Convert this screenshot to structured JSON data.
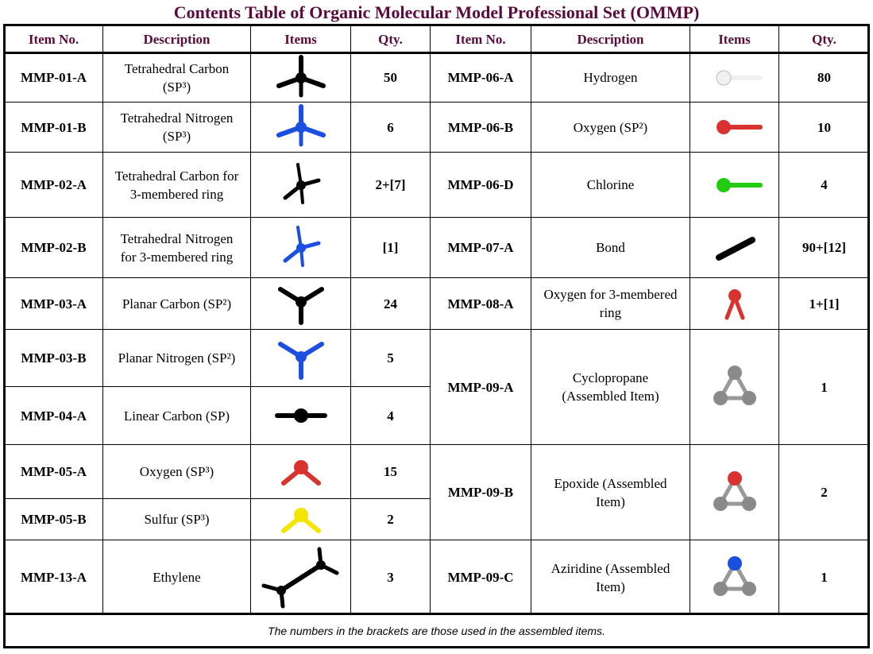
{
  "title": "Contents Table of Organic Molecular Model Professional Set (OMMP)",
  "headers": {
    "item_no": "Item No.",
    "description": "Description",
    "items": "Items",
    "qty": "Qty."
  },
  "left_rows": [
    {
      "item_no": "MMP-01-A",
      "description": "Tetrahedral Carbon (SP³)",
      "icon": "tetrahedral-carbon-icon",
      "qty": "50"
    },
    {
      "item_no": "MMP-01-B",
      "description": "Tetrahedral Nitrogen (SP³)",
      "icon": "tetrahedral-nitrogen-icon",
      "qty": "6"
    },
    {
      "item_no": "MMP-02-A",
      "description": "Tetrahedral Carbon for 3-membered ring",
      "icon": "tetrahedral-carbon-ring-icon",
      "qty": "2+[7]"
    },
    {
      "item_no": "MMP-02-B",
      "description": "Tetrahedral Nitrogen for 3-membered ring",
      "icon": "tetrahedral-nitrogen-ring-icon",
      "qty": "[1]"
    },
    {
      "item_no": "MMP-03-A",
      "description": "Planar Carbon (SP²)",
      "icon": "planar-carbon-icon",
      "qty": "24"
    },
    {
      "item_no": "MMP-03-B",
      "description": "Planar Nitrogen (SP²)",
      "icon": "planar-nitrogen-icon",
      "qty": "5"
    },
    {
      "item_no": "MMP-04-A",
      "description": "Linear Carbon (SP)",
      "icon": "linear-carbon-icon",
      "qty": "4"
    },
    {
      "item_no": "MMP-05-A",
      "description": "Oxygen (SP³)",
      "icon": "oxygen-sp3-icon",
      "qty": "15"
    },
    {
      "item_no": "MMP-05-B",
      "description": "Sulfur (SP³)",
      "icon": "sulfur-icon",
      "qty": "2"
    },
    {
      "item_no": "MMP-13-A",
      "description": "Ethylene",
      "icon": "ethylene-icon",
      "qty": "3"
    }
  ],
  "right_rows": [
    {
      "item_no": "MMP-06-A",
      "description": "Hydrogen",
      "icon": "hydrogen-icon",
      "qty": "80"
    },
    {
      "item_no": "MMP-06-B",
      "description": "Oxygen (SP²)",
      "icon": "oxygen-sp2-icon",
      "qty": "10"
    },
    {
      "item_no": "MMP-06-D",
      "description": "Chlorine",
      "icon": "chlorine-icon",
      "qty": "4"
    },
    {
      "item_no": "MMP-07-A",
      "description": "Bond",
      "icon": "bond-icon",
      "qty": "90+[12]"
    },
    {
      "item_no": "MMP-08-A",
      "description": "Oxygen for 3-membered ring",
      "icon": "oxygen-ring-icon",
      "qty": "1+[1]"
    },
    {
      "item_no": "MMP-09-A",
      "description": "Cyclopropane (Assembled Item)",
      "icon": "cyclopropane-icon",
      "qty": "1"
    },
    {
      "item_no": "MMP-09-B",
      "description": "Epoxide (Assembled Item)",
      "icon": "epoxide-icon",
      "qty": "2"
    },
    {
      "item_no": "MMP-09-C",
      "description": "Aziridine (Assembled Item)",
      "icon": "aziridine-icon",
      "qty": "1"
    }
  ],
  "footer": "The numbers in the brackets are those used in the assembled items.",
  "colors": {
    "title": "#5a0a3c",
    "carbon": "#000000",
    "nitrogen": "#1a4fe0",
    "oxygen": "#d8332e",
    "sulfur": "#f2e600",
    "chlorine": "#22cc11",
    "hydrogen": "#f0f0f0",
    "ring_atom": "#8a8a8a"
  }
}
